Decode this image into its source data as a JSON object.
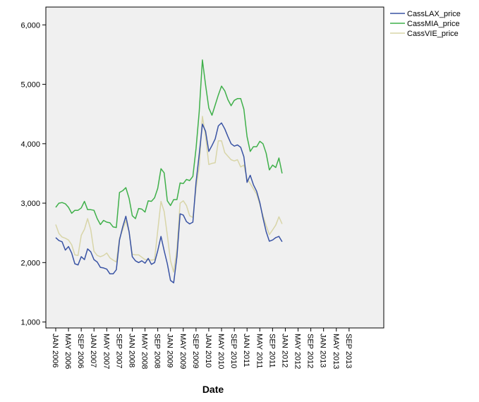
{
  "chart_data": {
    "type": "line",
    "xlabel": "Date",
    "ylabel": "",
    "ylim": [
      900,
      6300
    ],
    "yticks": [
      1000,
      2000,
      3000,
      4000,
      5000,
      6000
    ],
    "ytick_labels": [
      "1,000",
      "2,000",
      "3,000",
      "4,000",
      "5,000",
      "6,000"
    ],
    "xlim": [
      "2006-01",
      "2013-12"
    ],
    "xtick_labels": [
      "JAN 2006",
      "MAY 2006",
      "SEP 2006",
      "JAN 2007",
      "MAY 2007",
      "SEP 2007",
      "JAN 2008",
      "MAY 2008",
      "SEP 2008",
      "JAN 2009",
      "MAY 2009",
      "SEP 2009",
      "JAN 2010",
      "MAY 2010",
      "SEP 2010",
      "JAN 2011",
      "MAY 2011",
      "SEP 2011",
      "JAN 2012",
      "MAY 2012",
      "SEP 2012",
      "JAN 2013",
      "MAY 2013",
      "SEP 2013"
    ],
    "grid": false,
    "legend_position": "top-right",
    "x": [
      "2006-01",
      "2006-02",
      "2006-03",
      "2006-04",
      "2006-05",
      "2006-06",
      "2006-07",
      "2006-08",
      "2006-09",
      "2006-10",
      "2006-11",
      "2006-12",
      "2007-01",
      "2007-02",
      "2007-03",
      "2007-04",
      "2007-05",
      "2007-06",
      "2007-07",
      "2007-08",
      "2007-09",
      "2007-10",
      "2007-11",
      "2007-12",
      "2008-01",
      "2008-02",
      "2008-03",
      "2008-04",
      "2008-05",
      "2008-06",
      "2008-07",
      "2008-08",
      "2008-09",
      "2008-10",
      "2008-11",
      "2008-12",
      "2009-01",
      "2009-02",
      "2009-03",
      "2009-04",
      "2009-05",
      "2009-06",
      "2009-07",
      "2009-08",
      "2009-09",
      "2009-10",
      "2009-11",
      "2009-12",
      "2010-01",
      "2010-02",
      "2010-03",
      "2010-04",
      "2010-05",
      "2010-06",
      "2010-07",
      "2010-08",
      "2010-09",
      "2010-10",
      "2010-11",
      "2010-12",
      "2011-01",
      "2011-02",
      "2011-03",
      "2011-04",
      "2011-05",
      "2011-06",
      "2011-07",
      "2011-08",
      "2011-09",
      "2011-10",
      "2011-11",
      "2011-12",
      "2012-01"
    ],
    "series": [
      {
        "name": "CassLAX_price",
        "color": "#3953a4",
        "values": [
          2420,
          2370,
          2350,
          2210,
          2270,
          2160,
          1980,
          1960,
          2100,
          2050,
          2230,
          2180,
          2050,
          2010,
          1920,
          1910,
          1890,
          1810,
          1810,
          1880,
          2380,
          2600,
          2780,
          2520,
          2100,
          2030,
          2000,
          2030,
          1990,
          2070,
          1970,
          2000,
          2200,
          2440,
          2200,
          1980,
          1700,
          1660,
          2100,
          2820,
          2800,
          2690,
          2650,
          2680,
          3350,
          3820,
          4330,
          4210,
          3870,
          3970,
          4080,
          4300,
          4350,
          4250,
          4120,
          4000,
          3960,
          3980,
          3940,
          3780,
          3350,
          3470,
          3310,
          3200,
          3010,
          2750,
          2520,
          2360,
          2380,
          2420,
          2440,
          2350,
          null
        ]
      },
      {
        "name": "CassMIA_price",
        "color": "#3fb04a",
        "values": [
          2930,
          3000,
          3010,
          2990,
          2930,
          2830,
          2880,
          2880,
          2920,
          3030,
          2890,
          2890,
          2880,
          2740,
          2640,
          2710,
          2680,
          2670,
          2600,
          2590,
          3180,
          3210,
          3260,
          3080,
          2790,
          2740,
          2910,
          2900,
          2850,
          3040,
          3030,
          3090,
          3250,
          3580,
          3510,
          3040,
          2960,
          3060,
          3060,
          3340,
          3330,
          3400,
          3380,
          3450,
          3920,
          4540,
          5410,
          4990,
          4600,
          4480,
          4650,
          4820,
          4970,
          4890,
          4740,
          4640,
          4730,
          4760,
          4760,
          4580,
          4120,
          3870,
          3950,
          3950,
          4040,
          4000,
          3840,
          3560,
          3640,
          3600,
          3760,
          3500,
          null
        ]
      },
      {
        "name": "CassVIE_price",
        "color": "#d8d5a8",
        "values": [
          2640,
          2490,
          2430,
          2410,
          2380,
          2300,
          2130,
          2120,
          2460,
          2560,
          2740,
          2550,
          2190,
          2120,
          2100,
          2120,
          2160,
          2080,
          2040,
          2010,
          2410,
          2550,
          2710,
          2510,
          2140,
          2130,
          2130,
          2090,
          2050,
          2050,
          2040,
          2050,
          2540,
          3030,
          2860,
          2460,
          2030,
          1840,
          2230,
          3000,
          3040,
          2960,
          2790,
          2760,
          3250,
          3620,
          4460,
          4130,
          3650,
          3670,
          3680,
          4050,
          4050,
          3850,
          3790,
          3730,
          3710,
          3730,
          3610,
          3640,
          3410,
          3330,
          3240,
          3150,
          2980,
          2790,
          2620,
          2470,
          2550,
          2630,
          2770,
          2650,
          null
        ]
      }
    ]
  }
}
